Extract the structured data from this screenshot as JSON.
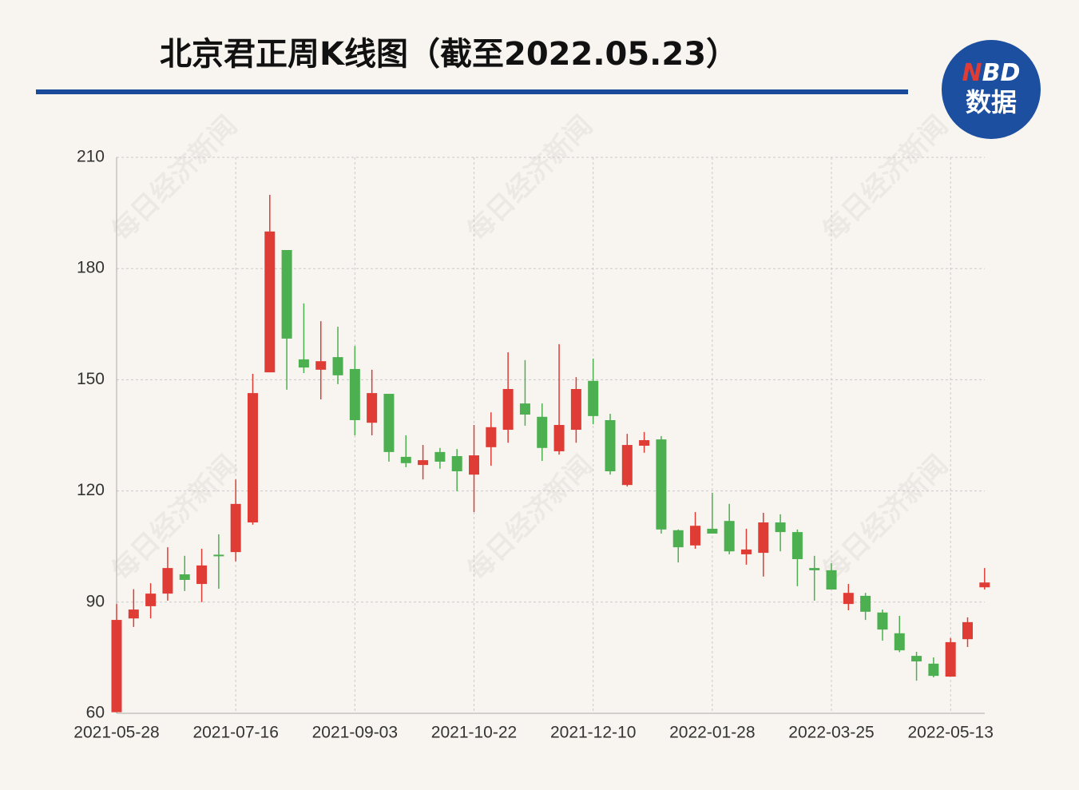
{
  "chart_data": {
    "type": "candlestick",
    "title": "北京君正周K线图（截至2022.05.23）",
    "categories": [
      "2021-05-28",
      null,
      null,
      null,
      null,
      null,
      null,
      "2021-07-16",
      null,
      null,
      null,
      null,
      null,
      null,
      "2021-09-03",
      null,
      null,
      null,
      null,
      null,
      null,
      "2021-10-22",
      null,
      null,
      null,
      null,
      null,
      null,
      "2021-12-10",
      null,
      null,
      null,
      null,
      null,
      null,
      "2022-01-28",
      null,
      null,
      null,
      null,
      null,
      null,
      "2022-03-25",
      null,
      null,
      null,
      null,
      null,
      null,
      "2022-05-13",
      null,
      null
    ],
    "open": [
      60.3,
      85.6,
      88.9,
      92.3,
      97.5,
      94.9,
      102.8,
      103.5,
      111.5,
      152,
      185,
      155.5,
      152.7,
      156.1,
      152.9,
      138.4,
      146.2,
      129.2,
      127,
      130.5,
      129.4,
      124.4,
      131.8,
      136.5,
      143.6,
      140,
      130.7,
      136.5,
      149.7,
      139.1,
      121.6,
      132.2,
      133.9,
      109.4,
      105.3,
      109.8,
      111.9,
      102.9,
      103.3,
      111.5,
      108.9,
      99.2,
      98.6,
      89.5,
      91.7,
      87.2,
      81.6,
      75.5,
      73.4,
      69.9,
      80,
      94
    ],
    "high": [
      89.5,
      93.5,
      95.1,
      104.8,
      102.5,
      104.4,
      108.3,
      123.1,
      151.6,
      199.9,
      185,
      170.6,
      165.8,
      164.3,
      159.1,
      152.7,
      146.2,
      135,
      132.4,
      131.6,
      131.3,
      137.8,
      141.2,
      157.4,
      155.3,
      143.6,
      159.6,
      150.7,
      155.7,
      140.8,
      135.4,
      135.9,
      134.8,
      109.6,
      114.3,
      119.5,
      116.5,
      109.8,
      114.1,
      113.7,
      109.6,
      102.5,
      100.5,
      94.9,
      92.5,
      88,
      86.3,
      76.6,
      75.1,
      80.3,
      85.9,
      99.2
    ],
    "low": [
      60.3,
      83.3,
      85.6,
      90.4,
      93,
      90,
      93.6,
      101,
      110.9,
      152,
      147.3,
      151.8,
      144.7,
      148.8,
      135,
      135,
      127.9,
      126.4,
      123.1,
      126,
      119.9,
      114.3,
      126.8,
      133,
      137.6,
      128.1,
      129.8,
      133,
      138,
      124.4,
      121.2,
      130.3,
      108.5,
      100.7,
      104.4,
      108.5,
      102.9,
      100.1,
      96.9,
      103.7,
      94.3,
      90.4,
      93.4,
      87.8,
      85.2,
      79.6,
      76.5,
      68.8,
      69.7,
      69.9,
      77.9,
      93.4
    ],
    "close": [
      85.2,
      88,
      92.3,
      99.2,
      96,
      99.9,
      102.5,
      116.5,
      146.4,
      190,
      161.1,
      153.3,
      155,
      151.2,
      139.1,
      146.4,
      130.5,
      127.5,
      128.3,
      127.9,
      125.3,
      129.6,
      137.2,
      147.5,
      140.6,
      131.6,
      137.8,
      147.5,
      140.2,
      125.3,
      132.4,
      133.7,
      109.6,
      104.8,
      110.6,
      108.5,
      103.7,
      104.2,
      111.5,
      108.9,
      101.6,
      98.6,
      93.4,
      92.5,
      87.4,
      82.6,
      77,
      74,
      70.1,
      79.2,
      84.6,
      95.3
    ],
    "up_color": "#e03c36",
    "down_color": "#4caf50",
    "ylim": [
      60,
      210
    ],
    "yticks": [
      60,
      90,
      120,
      150,
      180,
      210
    ],
    "grid": true
  },
  "logo": {
    "n": "N",
    "bd": "BD",
    "text": "数据"
  },
  "watermark": "每日经济新闻"
}
